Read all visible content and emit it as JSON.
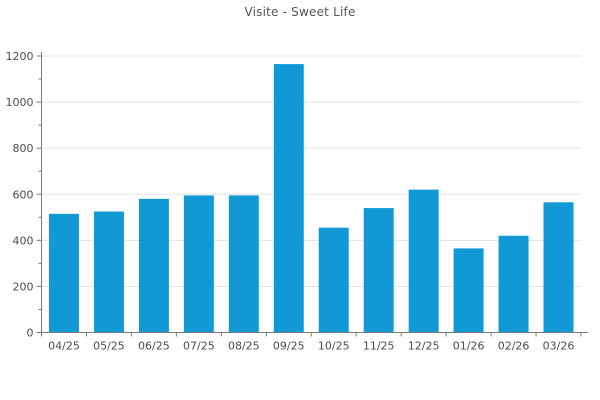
{
  "title": "Visite - Sweet Life",
  "chart_data": {
    "type": "bar",
    "title": "Visite - Sweet Life",
    "categories": [
      "04/25",
      "05/25",
      "06/25",
      "07/25",
      "08/25",
      "09/25",
      "10/25",
      "11/25",
      "12/25",
      "01/26",
      "02/26",
      "03/26"
    ],
    "values": [
      515,
      525,
      580,
      595,
      595,
      1165,
      455,
      540,
      620,
      365,
      420,
      565
    ],
    "xlabel": "",
    "ylabel": "",
    "ylim": [
      0,
      1200
    ],
    "ytick_step": 200,
    "yminor_step": 100,
    "ytick_labels": [
      "0",
      "200",
      "400",
      "600",
      "800",
      "1000",
      "1200"
    ],
    "grid": "horizontal-major",
    "legend_position": "none",
    "bar_color": "#1199d6",
    "gridline_color": "#e3e3e3",
    "axis_color": "#7a7a7a",
    "tick_label_color": "#4d4d4d",
    "title_color": "#58585a",
    "background_color": "#ffffff"
  }
}
